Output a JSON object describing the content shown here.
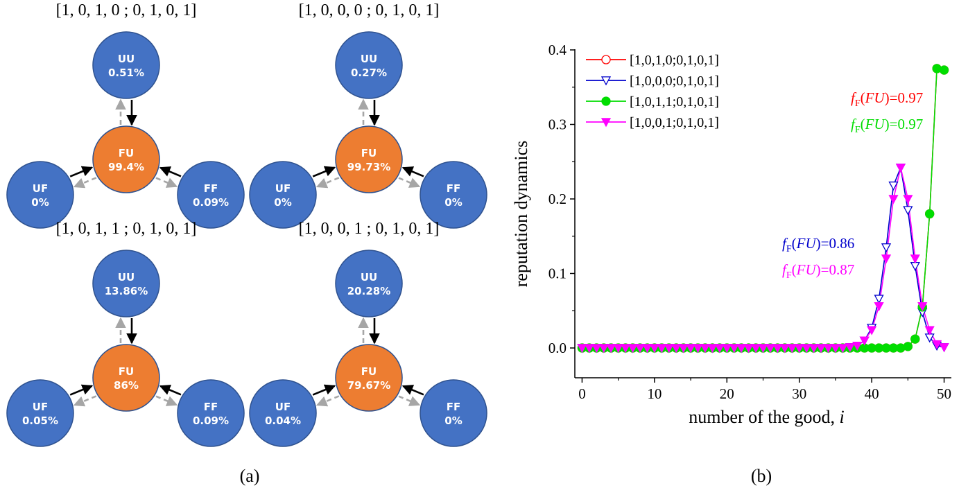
{
  "panel_a": {
    "label": "(a)",
    "diagrams": [
      {
        "title": "[1, 0, 1, 0 ; 0, 1, 0, 1]",
        "nodes": {
          "UU": {
            "name": "UU",
            "pct": "0.51%"
          },
          "FU": {
            "name": "FU",
            "pct": "99.4%"
          },
          "UF": {
            "name": "UF",
            "pct": "0%"
          },
          "FF": {
            "name": "FF",
            "pct": "0.09%"
          }
        }
      },
      {
        "title": "[1, 0, 0, 0 ; 0, 1, 0, 1]",
        "nodes": {
          "UU": {
            "name": "UU",
            "pct": "0.27%"
          },
          "FU": {
            "name": "FU",
            "pct": "99.73%"
          },
          "UF": {
            "name": "UF",
            "pct": "0%"
          },
          "FF": {
            "name": "FF",
            "pct": "0%"
          }
        }
      },
      {
        "title": "[1, 0, 1, 1 ; 0, 1, 0, 1]",
        "nodes": {
          "UU": {
            "name": "UU",
            "pct": "13.86%"
          },
          "FU": {
            "name": "FU",
            "pct": "86%"
          },
          "UF": {
            "name": "UF",
            "pct": "0.05%"
          },
          "FF": {
            "name": "FF",
            "pct": "0.09%"
          }
        }
      },
      {
        "title": "[1, 0, 0, 1 ; 0, 1, 0, 1]",
        "nodes": {
          "UU": {
            "name": "UU",
            "pct": "20.28%"
          },
          "FU": {
            "name": "FU",
            "pct": "79.67%"
          },
          "UF": {
            "name": "UF",
            "pct": "0.04%"
          },
          "FF": {
            "name": "FF",
            "pct": "0%"
          }
        }
      }
    ],
    "colors": {
      "node_blue": "#4472C4",
      "node_orange": "#ED7D31",
      "solid_arrow": "#000000",
      "dashed_arrow": "#A6A6A6"
    }
  },
  "panel_b": {
    "label": "(b)",
    "annotations": [
      {
        "base": "f",
        "sub": "F",
        "arg": "FU",
        "value": "=0.97",
        "color": "#FF0000"
      },
      {
        "base": "f",
        "sub": "F",
        "arg": "FU",
        "value": "=0.97",
        "color": "#00DD00"
      },
      {
        "base": "f",
        "sub": "F",
        "arg": "FU",
        "value": "=0.86",
        "color": "#0000CC"
      },
      {
        "base": "f",
        "sub": "F",
        "arg": "FU",
        "value": "=0.87",
        "color": "#FF00FF"
      }
    ]
  },
  "chart_data": {
    "type": "line",
    "title": "",
    "xlabel": "number of the good, i",
    "ylabel": "reputation dynamics",
    "xlim": [
      -1,
      51
    ],
    "ylim": [
      -0.04,
      0.4
    ],
    "xticks": [
      0,
      10,
      20,
      30,
      40,
      50
    ],
    "yticks": [
      0.0,
      0.1,
      0.2,
      0.3,
      0.4
    ],
    "ytick_labels": [
      "0.0",
      "0.1",
      "0.2",
      "0.3",
      "0.4"
    ],
    "grid": false,
    "legend_position": "top-left",
    "x": [
      0,
      1,
      2,
      3,
      4,
      5,
      6,
      7,
      8,
      9,
      10,
      11,
      12,
      13,
      14,
      15,
      16,
      17,
      18,
      19,
      20,
      21,
      22,
      23,
      24,
      25,
      26,
      27,
      28,
      29,
      30,
      31,
      32,
      33,
      34,
      35,
      36,
      37,
      38,
      39,
      40,
      41,
      42,
      43,
      44,
      45,
      46,
      47,
      48,
      49,
      50
    ],
    "series": [
      {
        "name": "[1,0,1,0;0,1,0,1]",
        "color": "#FF0000",
        "marker": "circle-open",
        "values": [
          0,
          0,
          0,
          0,
          0,
          0,
          0,
          0,
          0,
          0,
          0,
          0,
          0,
          0,
          0,
          0,
          0,
          0,
          0,
          0,
          0,
          0,
          0,
          0,
          0,
          0,
          0,
          0,
          0,
          0,
          0,
          0,
          0,
          0,
          0,
          0,
          0,
          0,
          0,
          0,
          0,
          0,
          0,
          0,
          0,
          0.002,
          0.012,
          0.055,
          0.18,
          0.375,
          0.373
        ]
      },
      {
        "name": "[1,0,0,0;0,1,0,1]",
        "color": "#0000CC",
        "marker": "triangle-down-open",
        "values": [
          0,
          0,
          0,
          0,
          0,
          0,
          0,
          0,
          0,
          0,
          0,
          0,
          0,
          0,
          0,
          0,
          0,
          0,
          0,
          0,
          0,
          0,
          0,
          0,
          0,
          0,
          0,
          0,
          0,
          0,
          0,
          0,
          0,
          0,
          0,
          0,
          0,
          0.001,
          0.003,
          0.01,
          0.027,
          0.066,
          0.135,
          0.218,
          0.242,
          0.185,
          0.11,
          0.048,
          0.014,
          0.003,
          0.001
        ]
      },
      {
        "name": "[1,0,1,1;0,1,0,1]",
        "color": "#00DD00",
        "marker": "circle-filled",
        "values": [
          0,
          0,
          0,
          0,
          0,
          0,
          0,
          0,
          0,
          0,
          0,
          0,
          0,
          0,
          0,
          0,
          0,
          0,
          0,
          0,
          0,
          0,
          0,
          0,
          0,
          0,
          0,
          0,
          0,
          0,
          0,
          0,
          0,
          0,
          0,
          0,
          0,
          0,
          0,
          0,
          0,
          0,
          0,
          0,
          0,
          0.002,
          0.012,
          0.055,
          0.18,
          0.375,
          0.373
        ]
      },
      {
        "name": "[1,0,0,1;0,1,0,1]",
        "color": "#FF00FF",
        "marker": "triangle-down-filled",
        "values": [
          0,
          0,
          0,
          0,
          0,
          0,
          0,
          0,
          0,
          0,
          0,
          0,
          0,
          0,
          0,
          0,
          0,
          0,
          0,
          0,
          0,
          0,
          0,
          0,
          0,
          0,
          0,
          0,
          0,
          0,
          0,
          0,
          0,
          0,
          0,
          0,
          0,
          0.001,
          0.003,
          0.01,
          0.024,
          0.056,
          0.12,
          0.2,
          0.242,
          0.2,
          0.12,
          0.056,
          0.024,
          0.005,
          0.001
        ]
      }
    ]
  }
}
